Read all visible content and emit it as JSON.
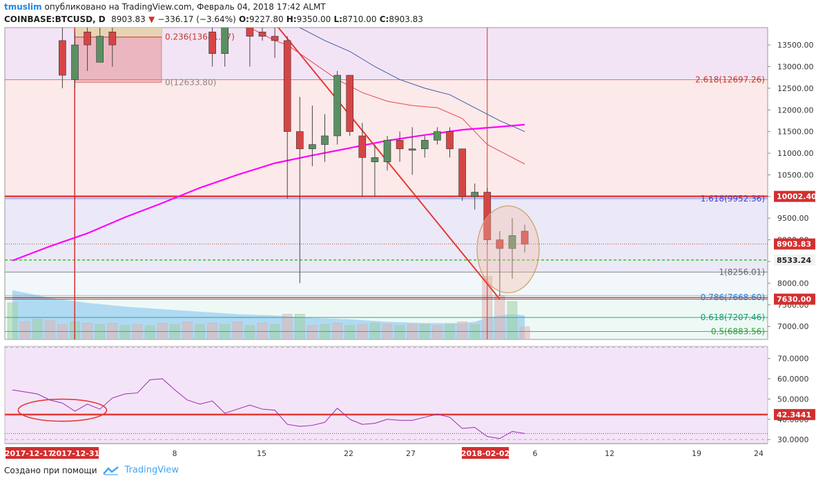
{
  "header": {
    "author": "tmuslim",
    "published": "опубликовано на TradingView.com, Февраль 04, 2018 17:42 ALMT",
    "symbol": "COINBASE:BTCUSD, D",
    "last": "8903.83",
    "change": "−336.17 (−3.64%)",
    "o_label": "O:",
    "o": "9227.80",
    "h_label": "H:",
    "h": "9350.00",
    "l_label": "L:",
    "l": "8710.00",
    "c_label": "C:",
    "c": "8903.83"
  },
  "footer": {
    "created_with": "Создано при помощи",
    "brand": "TradingView"
  },
  "colors": {
    "up": "#5a8f63",
    "down": "#d64545",
    "ma_fast": "#ff00ff",
    "ma_red": "#e8474f",
    "ma_blue": "#3b5da8",
    "rsi": "#9c27b0",
    "trend": "#e53935"
  },
  "chart_data": [
    {
      "type": "candlestick",
      "title": "COINBASE:BTCUSD, D",
      "ylim": [
        6700,
        13900
      ],
      "y_ticks": [
        "13500.00",
        "13000.00",
        "12500.00",
        "12000.00",
        "11500.00",
        "11000.00",
        "10500.00",
        "10000.00",
        "9500.00",
        "9000.00",
        "8500.00",
        "8000.00",
        "7500.00",
        "7000.00"
      ],
      "x_ticks": [
        {
          "label": "2017-12-17",
          "x": 0,
          "highlight": true
        },
        {
          "label": "2017-12-31",
          "x": 14,
          "highlight": true
        },
        {
          "label": "8",
          "x": 22
        },
        {
          "label": "15",
          "x": 29
        },
        {
          "label": "22",
          "x": 36
        },
        {
          "label": "27",
          "x": 41
        },
        {
          "label": "2018-02-02",
          "x": 47,
          "highlight": true
        },
        {
          "label": "6",
          "x": 51
        },
        {
          "label": "12",
          "x": 57
        },
        {
          "label": "19",
          "x": 64
        },
        {
          "label": "24",
          "x": 69
        }
      ],
      "candles": [
        {
          "x": 4,
          "o": 13600,
          "h": 14200,
          "l": 12500,
          "c": 12800
        },
        {
          "x": 5,
          "o": 12700,
          "h": 13800,
          "l": 12500,
          "c": 13500
        },
        {
          "x": 6,
          "o": 13800,
          "h": 14200,
          "l": 12900,
          "c": 13500
        },
        {
          "x": 7,
          "o": 13100,
          "h": 13900,
          "l": 13100,
          "c": 13700
        },
        {
          "x": 8,
          "o": 13800,
          "h": 14200,
          "l": 13000,
          "c": 13500
        },
        {
          "x": 16,
          "o": 13800,
          "h": 14000,
          "l": 13000,
          "c": 13300
        },
        {
          "x": 17,
          "o": 13300,
          "h": 14200,
          "l": 13000,
          "c": 14100
        },
        {
          "x": 19,
          "o": 14000,
          "h": 14300,
          "l": 13000,
          "c": 13700
        },
        {
          "x": 20,
          "o": 13800,
          "h": 14000,
          "l": 13600,
          "c": 13700
        },
        {
          "x": 21,
          "o": 13700,
          "h": 14000,
          "l": 13200,
          "c": 13600
        },
        {
          "x": 22,
          "o": 13600,
          "h": 13700,
          "l": 9950,
          "c": 11500
        },
        {
          "x": 23,
          "o": 11500,
          "h": 12300,
          "l": 8000,
          "c": 11100
        },
        {
          "x": 24,
          "o": 11100,
          "h": 12100,
          "l": 10700,
          "c": 11200
        },
        {
          "x": 25,
          "o": 11200,
          "h": 11900,
          "l": 10800,
          "c": 11400
        },
        {
          "x": 26,
          "o": 11400,
          "h": 12900,
          "l": 11200,
          "c": 12800
        },
        {
          "x": 27,
          "o": 12800,
          "h": 12800,
          "l": 11400,
          "c": 11500
        },
        {
          "x": 28,
          "o": 11400,
          "h": 11700,
          "l": 10000,
          "c": 10900
        },
        {
          "x": 29,
          "o": 10800,
          "h": 11200,
          "l": 10000,
          "c": 10900
        },
        {
          "x": 30,
          "o": 10800,
          "h": 11400,
          "l": 10600,
          "c": 11300
        },
        {
          "x": 31,
          "o": 11300,
          "h": 11500,
          "l": 10800,
          "c": 11100
        },
        {
          "x": 32,
          "o": 11100,
          "h": 11600,
          "l": 10500,
          "c": 11100
        },
        {
          "x": 33,
          "o": 11100,
          "h": 11400,
          "l": 10900,
          "c": 11300
        },
        {
          "x": 34,
          "o": 11300,
          "h": 11600,
          "l": 11200,
          "c": 11500
        },
        {
          "x": 35,
          "o": 11500,
          "h": 11600,
          "l": 10900,
          "c": 11100
        },
        {
          "x": 36,
          "o": 11100,
          "h": 11100,
          "l": 9900,
          "c": 10000
        },
        {
          "x": 37,
          "o": 10000,
          "h": 10300,
          "l": 9700,
          "c": 10100
        },
        {
          "x": 38,
          "o": 10100,
          "h": 10200,
          "l": 8900,
          "c": 9000
        },
        {
          "x": 39,
          "o": 9000,
          "h": 9200,
          "l": 7700,
          "c": 8800
        },
        {
          "x": 40,
          "o": 8800,
          "h": 9500,
          "l": 8100,
          "c": 9100
        },
        {
          "x": 41,
          "o": 9200,
          "h": 9350,
          "l": 8710,
          "c": 8900
        }
      ],
      "volume": [
        {
          "x": 0,
          "v": 2.9,
          "up": true
        },
        {
          "x": 1,
          "v": 1.4,
          "up": false
        },
        {
          "x": 2,
          "v": 1.6,
          "up": true
        },
        {
          "x": 3,
          "v": 1.5,
          "up": false
        },
        {
          "x": 4,
          "v": 1.2,
          "up": false
        },
        {
          "x": 5,
          "v": 1.4,
          "up": true
        },
        {
          "x": 6,
          "v": 1.3,
          "up": false
        },
        {
          "x": 7,
          "v": 1.2,
          "up": true
        },
        {
          "x": 8,
          "v": 1.3,
          "up": false
        },
        {
          "x": 9,
          "v": 1.1,
          "up": true
        },
        {
          "x": 10,
          "v": 1.2,
          "up": false
        },
        {
          "x": 11,
          "v": 1.1,
          "up": true
        },
        {
          "x": 12,
          "v": 1.3,
          "up": false
        },
        {
          "x": 13,
          "v": 1.2,
          "up": true
        },
        {
          "x": 14,
          "v": 1.4,
          "up": false
        },
        {
          "x": 15,
          "v": 1.2,
          "up": true
        },
        {
          "x": 16,
          "v": 1.3,
          "up": false
        },
        {
          "x": 17,
          "v": 1.2,
          "up": true
        },
        {
          "x": 18,
          "v": 1.4,
          "up": false
        },
        {
          "x": 19,
          "v": 1.1,
          "up": true
        },
        {
          "x": 20,
          "v": 1.3,
          "up": false
        },
        {
          "x": 21,
          "v": 1.2,
          "up": true
        },
        {
          "x": 22,
          "v": 2.0,
          "up": false
        },
        {
          "x": 23,
          "v": 2.0,
          "up": true
        },
        {
          "x": 24,
          "v": 1.1,
          "up": false
        },
        {
          "x": 25,
          "v": 1.2,
          "up": true
        },
        {
          "x": 26,
          "v": 1.3,
          "up": false
        },
        {
          "x": 27,
          "v": 1.1,
          "up": true
        },
        {
          "x": 28,
          "v": 1.2,
          "up": false
        },
        {
          "x": 29,
          "v": 1.3,
          "up": true
        },
        {
          "x": 30,
          "v": 1.2,
          "up": false
        },
        {
          "x": 31,
          "v": 1.1,
          "up": true
        },
        {
          "x": 32,
          "v": 1.2,
          "up": false
        },
        {
          "x": 33,
          "v": 1.2,
          "up": true
        },
        {
          "x": 34,
          "v": 1.1,
          "up": false
        },
        {
          "x": 35,
          "v": 1.2,
          "up": true
        },
        {
          "x": 36,
          "v": 1.4,
          "up": false
        },
        {
          "x": 37,
          "v": 1.2,
          "up": true
        },
        {
          "x": 38,
          "v": 5.0,
          "up": false
        },
        {
          "x": 39,
          "v": 3.5,
          "up": false
        },
        {
          "x": 40,
          "v": 3.0,
          "up": true
        },
        {
          "x": 41,
          "v": 1.0,
          "up": false
        }
      ],
      "volume_area": [
        [
          0,
          3.9
        ],
        [
          3,
          3.3
        ],
        [
          6,
          2.9
        ],
        [
          9,
          2.6
        ],
        [
          12,
          2.4
        ],
        [
          15,
          2.2
        ],
        [
          18,
          2.0
        ],
        [
          21,
          1.9
        ],
        [
          24,
          1.7
        ],
        [
          27,
          1.6
        ],
        [
          30,
          1.4
        ],
        [
          33,
          1.3
        ],
        [
          36,
          1.3
        ],
        [
          37,
          1.4
        ],
        [
          38,
          1.7
        ],
        [
          39,
          1.9
        ],
        [
          40,
          2.0
        ],
        [
          41,
          1.9
        ]
      ],
      "ma_magenta": [
        [
          0,
          8520
        ],
        [
          3,
          8850
        ],
        [
          6,
          9150
        ],
        [
          9,
          9520
        ],
        [
          12,
          9850
        ],
        [
          15,
          10200
        ],
        [
          18,
          10500
        ],
        [
          21,
          10770
        ],
        [
          24,
          10950
        ],
        [
          27,
          11120
        ],
        [
          30,
          11290
        ],
        [
          33,
          11420
        ],
        [
          36,
          11540
        ],
        [
          39,
          11610
        ],
        [
          41,
          11660
        ]
      ],
      "ma_red": [
        [
          19,
          13900
        ],
        [
          21,
          13600
        ],
        [
          22,
          13500
        ],
        [
          24,
          13100
        ],
        [
          26,
          12700
        ],
        [
          28,
          12400
        ],
        [
          30,
          12200
        ],
        [
          32,
          12100
        ],
        [
          34,
          12050
        ],
        [
          36,
          11800
        ],
        [
          38,
          11200
        ],
        [
          40,
          10900
        ],
        [
          41,
          10750
        ]
      ],
      "ma_blue": [
        [
          23,
          13900
        ],
        [
          25,
          13600
        ],
        [
          27,
          13350
        ],
        [
          29,
          13000
        ],
        [
          31,
          12700
        ],
        [
          33,
          12500
        ],
        [
          35,
          12350
        ],
        [
          37,
          12050
        ],
        [
          39,
          11750
        ],
        [
          41,
          11500
        ]
      ],
      "hlines": [
        {
          "y": 12697.26,
          "label": "2.618(12697.26)"
        },
        {
          "y": 10002.4,
          "label": "10002.40",
          "tag": true
        },
        {
          "y": 9952.36,
          "label": "1.618(9952.36)"
        },
        {
          "y": 8903.83,
          "label": "8903.83",
          "tag": true
        },
        {
          "y": 8533.24,
          "label": "8533.24",
          "tag": true
        },
        {
          "y": 8256.01,
          "label": "1(8256.01)"
        },
        {
          "y": 7668.6,
          "label": "0.786(7668.60)"
        },
        {
          "y": 7630.0,
          "label": "7630.00",
          "tag": true
        },
        {
          "y": 7207.46,
          "label": "0.618(7207.46)"
        },
        {
          "y": 6883.56,
          "label": "0.5(6883.56)"
        }
      ],
      "fib_box_labels": [
        {
          "y": 13681.37,
          "label": "0.236(13681.37)"
        },
        {
          "y": 12633.8,
          "label": "0(12633.80)"
        }
      ],
      "trendline": [
        [
          21,
          14000
        ],
        [
          39,
          7630
        ]
      ]
    },
    {
      "type": "line",
      "title": "RSI",
      "ylim": [
        28000,
        76000
      ],
      "y_ticks": [
        "70.0000",
        "60.0000",
        "50.0000",
        "40.0000",
        "30.0000"
      ],
      "level_label": "42.3441",
      "level": 42344,
      "values": [
        [
          0,
          54500
        ],
        [
          2,
          52500
        ],
        [
          3,
          49500
        ],
        [
          4,
          48000
        ],
        [
          5,
          44000
        ],
        [
          6,
          47500
        ],
        [
          7,
          45000
        ],
        [
          8,
          50500
        ],
        [
          9,
          52500
        ],
        [
          10,
          53000
        ],
        [
          11,
          59500
        ],
        [
          12,
          60000
        ],
        [
          13,
          54500
        ],
        [
          14,
          49500
        ],
        [
          15,
          47500
        ],
        [
          16,
          49000
        ],
        [
          17,
          43000
        ],
        [
          18,
          45000
        ],
        [
          19,
          47000
        ],
        [
          20,
          45000
        ],
        [
          21,
          44500
        ],
        [
          22,
          37500
        ],
        [
          23,
          36500
        ],
        [
          24,
          37000
        ],
        [
          25,
          38500
        ],
        [
          26,
          45500
        ],
        [
          27,
          40000
        ],
        [
          28,
          37500
        ],
        [
          29,
          38000
        ],
        [
          30,
          40000
        ],
        [
          31,
          39500
        ],
        [
          32,
          39500
        ],
        [
          33,
          41000
        ],
        [
          34,
          42500
        ],
        [
          35,
          41000
        ],
        [
          36,
          35500
        ],
        [
          37,
          36000
        ],
        [
          38,
          31500
        ],
        [
          39,
          30500
        ],
        [
          40,
          34000
        ],
        [
          41,
          33000
        ]
      ]
    }
  ]
}
